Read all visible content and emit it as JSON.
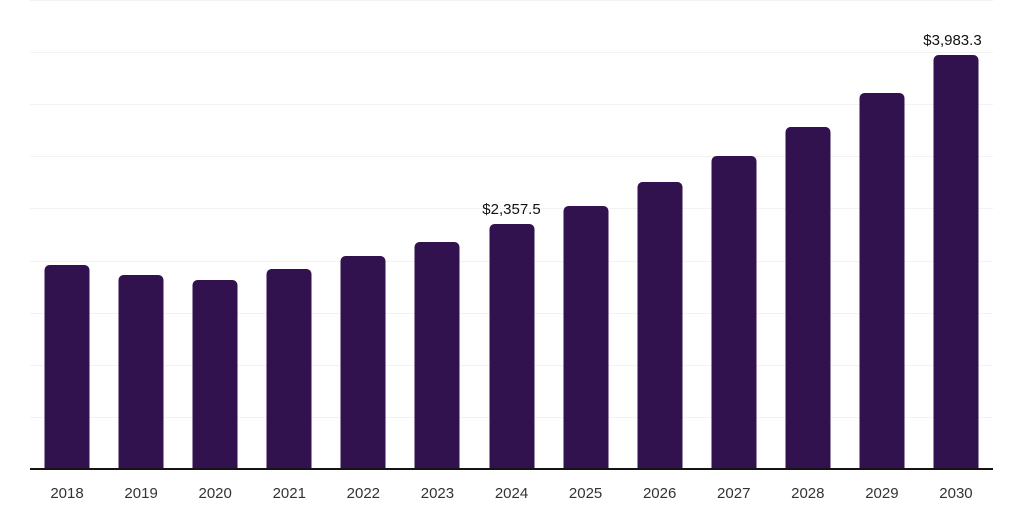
{
  "chart_data": {
    "type": "bar",
    "title": "",
    "xlabel": "",
    "ylabel": "",
    "categories": [
      "2018",
      "2019",
      "2020",
      "2021",
      "2022",
      "2023",
      "2024",
      "2025",
      "2026",
      "2027",
      "2028",
      "2029",
      "2030"
    ],
    "values": [
      1970,
      1870,
      1825,
      1930,
      2055,
      2190,
      2357.5,
      2535,
      2765,
      3010,
      3290,
      3615,
      3983.3
    ],
    "value_labels": [
      null,
      null,
      null,
      null,
      null,
      null,
      "$2,357.5",
      null,
      null,
      null,
      null,
      null,
      "$3,983.3"
    ],
    "ylim": [
      0,
      4510
    ],
    "gridline_step": 500,
    "grid": "horizontal-only",
    "legend": "none",
    "y_axis_ticks_visible": false,
    "colors": {
      "bar": "#32124E",
      "gridline": "#F2F2F2",
      "axis_line": "#141414",
      "tick_label": "#333333",
      "value_label": "#111111",
      "background": "#FFFFFF"
    }
  }
}
